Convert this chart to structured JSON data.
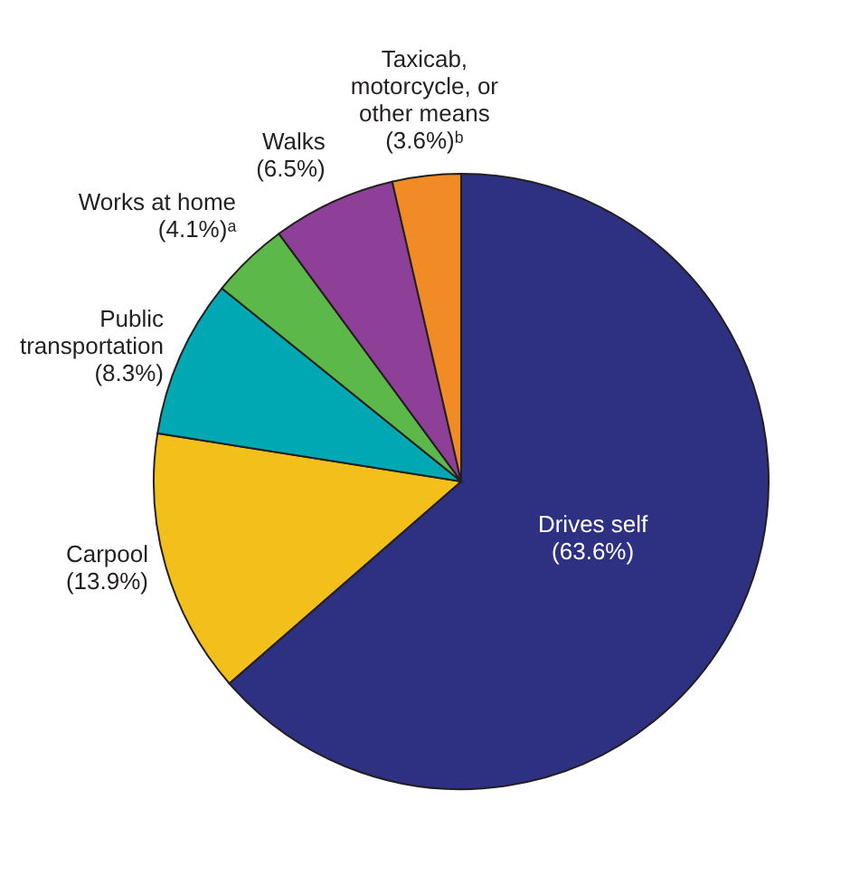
{
  "chart_data": {
    "type": "pie",
    "categories": [
      "Drives self",
      "Carpool",
      "Public transportation",
      "Works at home",
      "Walks",
      "Taxicab, motorcycle, or other means"
    ],
    "values": [
      63.6,
      13.9,
      8.3,
      4.1,
      6.5,
      3.6
    ],
    "colors": [
      "#2e3181",
      "#f2bf1b",
      "#00a8b4",
      "#5cb848",
      "#8e3f97",
      "#f08b25"
    ],
    "value_labels": [
      "(63.6%)",
      "(13.9%)",
      "(8.3%)",
      "(4.1%)ᵃ",
      "(6.5%)",
      "(3.6%)ᵇ"
    ]
  }
}
